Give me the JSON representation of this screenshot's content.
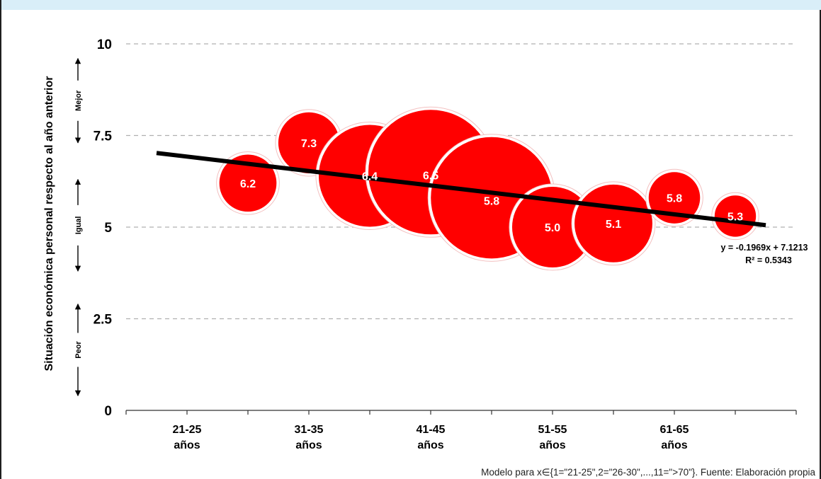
{
  "colors": {
    "bubble": "#ff0000",
    "trend": "#000000",
    "grid": "#b0b0b0",
    "band": "#d9eef8",
    "text": "#000000"
  },
  "chart_data": {
    "type": "bubble",
    "ylabel": "Situación económica personal respecto al año anterior",
    "ylim": [
      0,
      10
    ],
    "yticks": [
      0,
      2.5,
      5,
      7.5,
      10
    ],
    "xlim": [
      0,
      11
    ],
    "x_tick_labels": [
      {
        "x": 1,
        "label": [
          "21-25",
          "años"
        ]
      },
      {
        "x": 3,
        "label": [
          "31-35",
          "años"
        ]
      },
      {
        "x": 5,
        "label": [
          "41-45",
          "años"
        ]
      },
      {
        "x": 7,
        "label": [
          "51-55",
          "años"
        ]
      },
      {
        "x": 9,
        "label": [
          "61-65",
          "años"
        ]
      }
    ],
    "grid": "horizontal-dashed",
    "points": [
      {
        "x": 2,
        "y": 6.2,
        "label": "6.2",
        "size": 0.21
      },
      {
        "x": 3,
        "y": 7.3,
        "label": "7.3",
        "size": 0.24
      },
      {
        "x": 4,
        "y": 6.4,
        "label": "6.4",
        "size": 0.67
      },
      {
        "x": 5,
        "y": 6.5,
        "label": "6.5",
        "size": 1.0
      },
      {
        "x": 6,
        "y": 5.8,
        "label": "5.8",
        "size": 0.95
      },
      {
        "x": 7,
        "y": 5.0,
        "label": "5.0",
        "size": 0.42
      },
      {
        "x": 8,
        "y": 5.1,
        "label": "5.1",
        "size": 0.39
      },
      {
        "x": 9,
        "y": 5.8,
        "label": "5.8",
        "size": 0.17
      },
      {
        "x": 10,
        "y": 5.3,
        "label": "5.3",
        "size": 0.11
      }
    ],
    "trendline": {
      "slope": -0.1969,
      "intercept": 7.1213,
      "x_range": [
        0.5,
        10.5
      ],
      "equation": "y = -0.1969x + 7.1213",
      "r2": "R² = 0.5343"
    },
    "side_annotations": [
      {
        "label": "Mejor",
        "y_range": [
          7.3,
          9.6
        ]
      },
      {
        "label": "Igual",
        "y_range": [
          3.8,
          6.3
        ]
      },
      {
        "label": "Peor",
        "y_range": [
          0.4,
          2.9
        ]
      }
    ]
  },
  "footnote": "Modelo para x∈{1=\"21-25\",2=\"26-30\",...,11=\">70\"}. Fuente: Elaboración propia"
}
